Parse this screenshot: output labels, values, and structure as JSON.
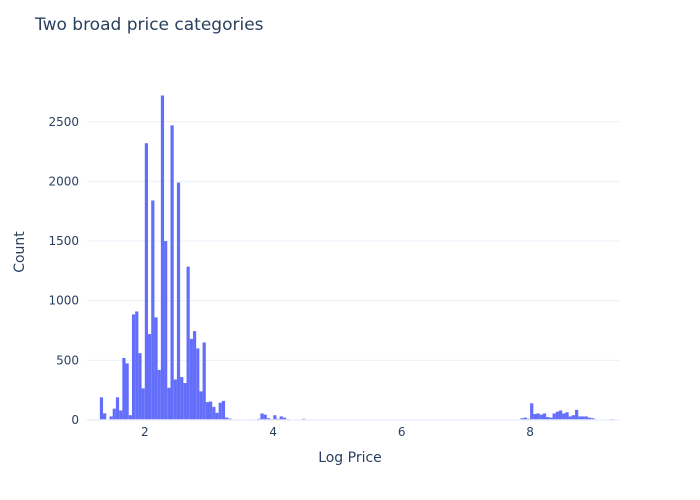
{
  "chart_data": {
    "type": "bar",
    "title": "Two broad price categories",
    "xlabel": "Log Price",
    "ylabel": "Count",
    "xlim": [
      1.1,
      9.4
    ],
    "ylim": [
      0,
      2850
    ],
    "xticks": [
      2,
      4,
      6,
      8
    ],
    "yticks": [
      0,
      500,
      1000,
      1500,
      2000,
      2500
    ],
    "grid": true,
    "bar_color": "#636efa",
    "bin_width": 0.05,
    "bins": [
      [
        1.175,
        5
      ],
      [
        1.275,
        3
      ],
      [
        1.325,
        190
      ],
      [
        1.375,
        55
      ],
      [
        1.425,
        4
      ],
      [
        1.475,
        30
      ],
      [
        1.525,
        95
      ],
      [
        1.575,
        190
      ],
      [
        1.625,
        80
      ],
      [
        1.675,
        520
      ],
      [
        1.725,
        475
      ],
      [
        1.775,
        40
      ],
      [
        1.825,
        885
      ],
      [
        1.875,
        910
      ],
      [
        1.925,
        560
      ],
      [
        1.975,
        265
      ],
      [
        2.025,
        2320
      ],
      [
        2.075,
        720
      ],
      [
        2.125,
        1840
      ],
      [
        2.175,
        860
      ],
      [
        2.225,
        420
      ],
      [
        2.275,
        2720
      ],
      [
        2.325,
        1500
      ],
      [
        2.375,
        270
      ],
      [
        2.425,
        2470
      ],
      [
        2.475,
        340
      ],
      [
        2.525,
        1990
      ],
      [
        2.575,
        360
      ],
      [
        2.625,
        310
      ],
      [
        2.675,
        1285
      ],
      [
        2.725,
        680
      ],
      [
        2.775,
        745
      ],
      [
        2.825,
        600
      ],
      [
        2.875,
        240
      ],
      [
        2.925,
        650
      ],
      [
        2.975,
        150
      ],
      [
        3.025,
        155
      ],
      [
        3.075,
        110
      ],
      [
        3.125,
        60
      ],
      [
        3.175,
        145
      ],
      [
        3.225,
        160
      ],
      [
        3.275,
        20
      ],
      [
        3.325,
        12
      ],
      [
        3.375,
        5
      ],
      [
        3.425,
        3
      ],
      [
        3.625,
        5
      ],
      [
        3.725,
        3
      ],
      [
        3.775,
        10
      ],
      [
        3.825,
        55
      ],
      [
        3.875,
        45
      ],
      [
        3.925,
        15
      ],
      [
        3.975,
        8
      ],
      [
        4.025,
        40
      ],
      [
        4.075,
        10
      ],
      [
        4.125,
        30
      ],
      [
        4.175,
        20
      ],
      [
        4.225,
        8
      ],
      [
        4.475,
        10
      ],
      [
        7.875,
        15
      ],
      [
        7.925,
        20
      ],
      [
        7.975,
        10
      ],
      [
        8.025,
        140
      ],
      [
        8.075,
        50
      ],
      [
        8.125,
        55
      ],
      [
        8.175,
        45
      ],
      [
        8.225,
        55
      ],
      [
        8.275,
        25
      ],
      [
        8.325,
        20
      ],
      [
        8.375,
        55
      ],
      [
        8.425,
        70
      ],
      [
        8.475,
        80
      ],
      [
        8.525,
        55
      ],
      [
        8.575,
        65
      ],
      [
        8.625,
        30
      ],
      [
        8.675,
        40
      ],
      [
        8.725,
        85
      ],
      [
        8.775,
        30
      ],
      [
        8.825,
        30
      ],
      [
        8.875,
        30
      ],
      [
        8.925,
        20
      ],
      [
        8.975,
        15
      ],
      [
        9.025,
        5
      ],
      [
        9.275,
        8
      ]
    ]
  }
}
